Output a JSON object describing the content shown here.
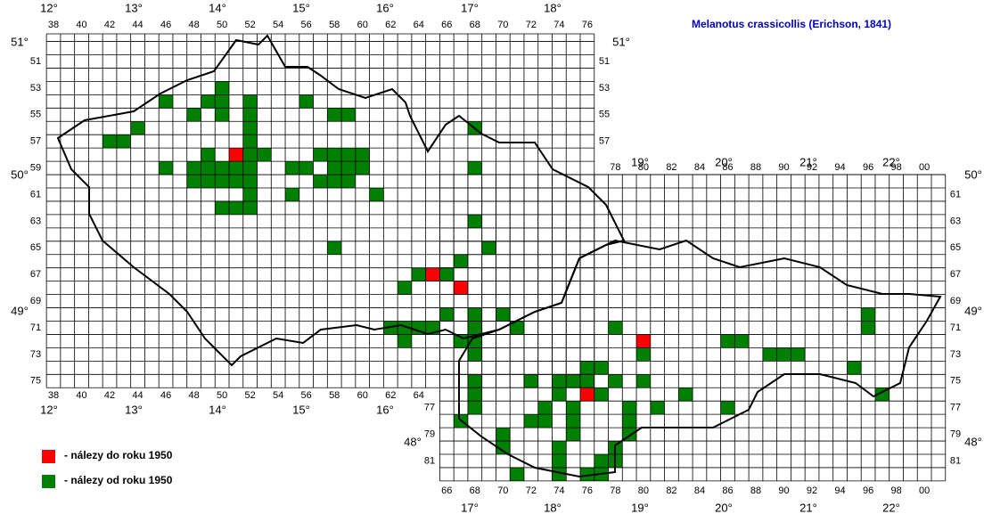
{
  "title": "Melanotus crassicollis (Erichson, 1841)",
  "legend": [
    {
      "label": "- nálezy do roku 1950"
    },
    {
      "label": "- nálezy od roku 1950"
    }
  ],
  "lon_labels": {
    "top": [
      "12°",
      "13°",
      "14°",
      "15°",
      "16°",
      "17°",
      "18°",
      "19°",
      "20°",
      "21°",
      "22°"
    ],
    "bottom": [
      "12°",
      "13°",
      "14°",
      "15°",
      "16°",
      "17°",
      "18°",
      "19°",
      "20°",
      "21°",
      "22°"
    ]
  },
  "lat_labels": {
    "left": [
      "51°",
      "50°",
      "49°",
      "48°"
    ],
    "right": [
      "51°",
      "50°",
      "49°",
      "48°"
    ]
  },
  "column_labels": {
    "top": [
      "38",
      "40",
      "42",
      "44",
      "46",
      "48",
      "50",
      "52",
      "54",
      "56",
      "58",
      "60",
      "62",
      "64",
      "66",
      "68",
      "70",
      "72",
      "74",
      "76"
    ],
    "top_east": [
      "78",
      "80",
      "82",
      "84",
      "86",
      "88",
      "90",
      "92",
      "94",
      "96",
      "98",
      "00"
    ],
    "bottom": [
      "38",
      "40",
      "42",
      "44",
      "46",
      "48",
      "50",
      "52",
      "54",
      "56",
      "58",
      "60",
      "62",
      "64"
    ],
    "bottom_east": [
      "66",
      "68",
      "70",
      "72",
      "74",
      "76",
      "78",
      "80",
      "82",
      "84",
      "86",
      "88",
      "90",
      "92",
      "94",
      "96",
      "98",
      "00"
    ]
  },
  "row_labels": {
    "left": [
      "51",
      "53",
      "55",
      "57",
      "59",
      "61",
      "63",
      "65",
      "67",
      "69",
      "71",
      "73",
      "75"
    ],
    "right": [
      "51",
      "53",
      "55",
      "57"
    ],
    "left_south": [
      "77",
      "79",
      "81"
    ],
    "right_east": [
      "61",
      "63",
      "65",
      "67",
      "69",
      "71",
      "73",
      "75",
      "77",
      "79",
      "81"
    ]
  }
}
